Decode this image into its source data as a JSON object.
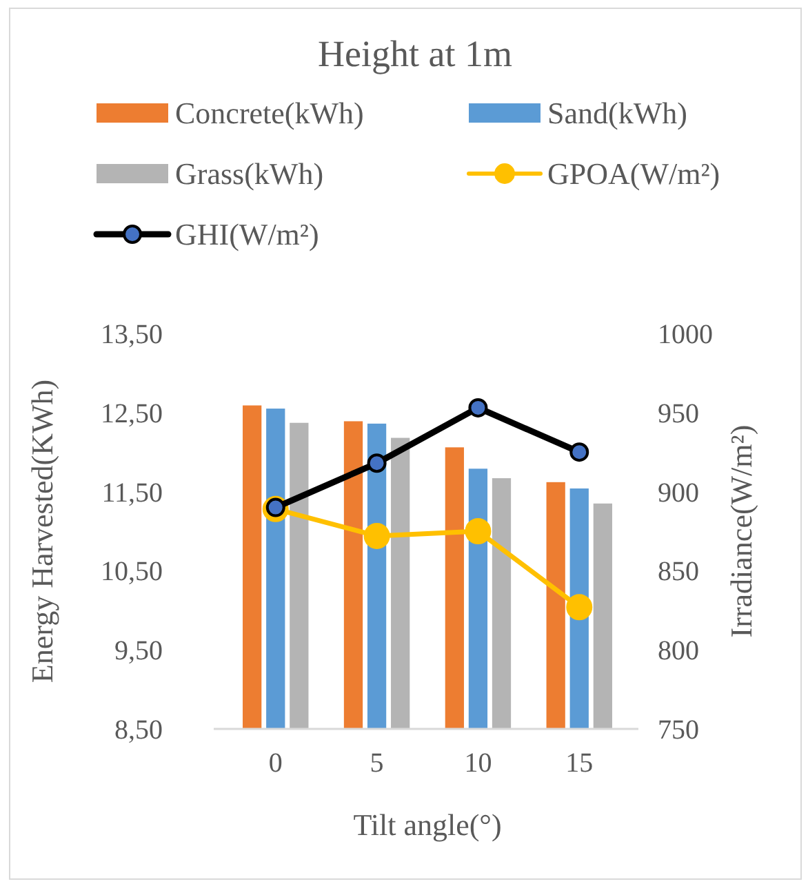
{
  "chart_data": {
    "type": "bar",
    "title": "Height at 1m",
    "xlabel": "Tilt angle(°)",
    "ylabel": "Energy Harvested(KWh)",
    "y2label": "Irradiance(W/m²)",
    "categories": [
      "0",
      "5",
      "10",
      "15"
    ],
    "series": [
      {
        "name": "Concrete(kWh)",
        "color": "#ed7d31",
        "values": [
          12.59,
          12.39,
          12.06,
          11.62
        ]
      },
      {
        "name": "Sand(kWh)",
        "color": "#5b9bd5",
        "values": [
          12.55,
          12.36,
          11.79,
          11.54
        ]
      },
      {
        "name": "Grass(kWh)",
        "color": "#b4b4b4",
        "values": [
          12.37,
          12.18,
          11.67,
          11.35
        ]
      },
      {
        "name": "GPOA(W/m²)",
        "type": "line",
        "axis": "y2",
        "color": "#ffc000",
        "marker": "circle",
        "values": [
          889,
          872,
          875,
          827
        ]
      },
      {
        "name": "GHI(W/m²)",
        "type": "line",
        "axis": "y2",
        "color": "#000000",
        "marker": "circle",
        "values": [
          890,
          918,
          953,
          925
        ]
      }
    ],
    "ylim": [
      8.5,
      13.5
    ],
    "yticks": [
      {
        "value": 8.5,
        "label": "8,50"
      },
      {
        "value": 9.5,
        "label": "9,50"
      },
      {
        "value": 10.5,
        "label": "10,50"
      },
      {
        "value": 11.5,
        "label": "11,50"
      },
      {
        "value": 12.5,
        "label": "12,50"
      },
      {
        "value": 13.5,
        "label": "13,50"
      }
    ],
    "y2lim": [
      750,
      1000
    ],
    "y2ticks": [
      750,
      800,
      850,
      900,
      950,
      1000
    ],
    "legend": "top"
  }
}
